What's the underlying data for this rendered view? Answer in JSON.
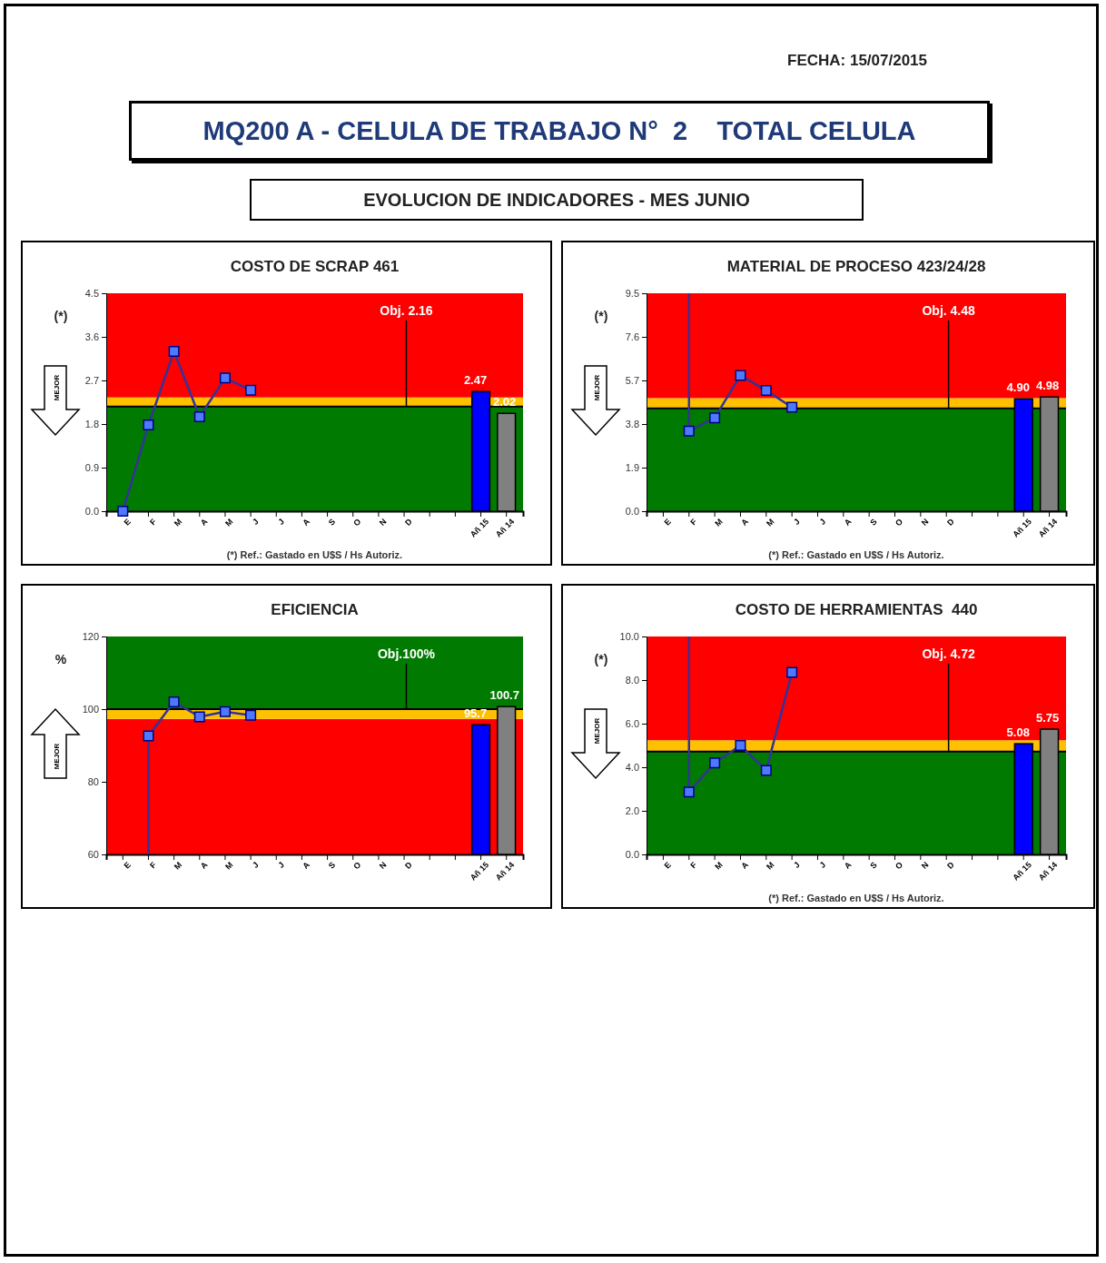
{
  "chart_data": [
    {
      "type": "other",
      "title": "MQ200 A - CELULA DE TRABAJO N°  2    TOTAL CELULA",
      "subtitle": "EVOLUCION DE INDICADORES - MES JUNIO",
      "annotations": [
        "FECHA: 15/07/2015"
      ]
    },
    {
      "type": "line",
      "title": "COSTO DE SCRAP 461",
      "ylabel": "(*)",
      "categories": [
        "E",
        "F",
        "M",
        "A",
        "M",
        "J",
        "J",
        "A",
        "S",
        "O",
        "N",
        "D",
        null,
        null,
        "Añ 15",
        "Añ 14"
      ],
      "ylim": [
        0,
        4.5
      ],
      "yticks": [
        {
          "value": 0,
          "label": "0.0"
        },
        0.9,
        1.8,
        2.7,
        3.6,
        4.5
      ],
      "grid": false,
      "marker": "square",
      "line_style": "solid",
      "bands": [
        {
          "axis": "y",
          "from": 0,
          "to": 2.16,
          "color": "#007a00"
        },
        {
          "axis": "y",
          "from": 2.16,
          "to": 2.35,
          "color": "#ffc000"
        },
        {
          "axis": "y",
          "from": 2.35,
          "to": 4.5,
          "color": "#ff0000"
        }
      ],
      "ref_lines": [
        {
          "axis": "y",
          "value": 2.16,
          "label": "Obj. 2.16",
          "color": "#000000"
        }
      ],
      "series": [
        {
          "type": "line",
          "color": "#333399",
          "values": [
            0,
            1.78,
            3.3,
            1.95,
            2.75,
            2.5,
            null,
            null,
            null,
            null,
            null,
            null,
            null,
            null,
            null,
            null
          ]
        },
        {
          "type": "bar",
          "colors": [
            "#0000ff",
            "#0000ff",
            "#0000ff",
            "#0000ff",
            "#0000ff",
            "#0000ff",
            "#0000ff",
            "#0000ff",
            "#0000ff",
            "#0000ff",
            "#0000ff",
            "#0000ff",
            "#0000ff",
            "#0000ff",
            "#0000ff",
            "#808080"
          ],
          "values": [
            null,
            null,
            null,
            null,
            null,
            null,
            null,
            null,
            null,
            null,
            null,
            null,
            null,
            null,
            2.47,
            2.02
          ],
          "value_labels": [
            null,
            null,
            null,
            null,
            null,
            null,
            null,
            null,
            null,
            null,
            null,
            null,
            null,
            null,
            "2.47",
            "2.02"
          ]
        }
      ],
      "annotations": [
        "MEJOR",
        "(*) Ref.: Gastado en U$S / Hs Autoriz."
      ]
    },
    {
      "type": "line",
      "title": "MATERIAL DE PROCESO 423/24/28",
      "ylabel": "(*)",
      "categories": [
        "E",
        "F",
        "M",
        "A",
        "M",
        "J",
        "J",
        "A",
        "S",
        "O",
        "N",
        "D",
        null,
        null,
        "Añ 15",
        "Añ 14"
      ],
      "ylim": [
        0,
        9.5
      ],
      "yticks": [
        {
          "value": 0,
          "label": "0.0"
        },
        1.9,
        3.8,
        5.7,
        7.6,
        9.5
      ],
      "grid": false,
      "marker": "square",
      "line_style": "solid",
      "bands": [
        {
          "axis": "y",
          "from": 0,
          "to": 4.48,
          "color": "#007a00"
        },
        {
          "axis": "y",
          "from": 4.48,
          "to": 4.93,
          "color": "#ffc000"
        },
        {
          "axis": "y",
          "from": 4.93,
          "to": 9.5,
          "color": "#ff0000"
        }
      ],
      "ref_lines": [
        {
          "axis": "y",
          "value": 4.48,
          "label": "Obj. 4.48",
          "color": "#000000"
        }
      ],
      "series": [
        {
          "type": "line",
          "color": "#333399",
          "values": [
            null,
            3.49,
            4.07,
            5.92,
            5.26,
            4.53,
            null,
            null,
            null,
            null,
            null,
            null,
            null,
            null,
            null,
            null
          ],
          "errors": [
            null,
            [
              3.49,
              9.5
            ],
            null,
            null,
            null,
            null,
            null,
            null,
            null,
            null,
            null,
            null,
            null,
            null,
            null,
            null
          ]
        },
        {
          "type": "bar",
          "colors": [
            "#0000ff",
            "#0000ff",
            "#0000ff",
            "#0000ff",
            "#0000ff",
            "#0000ff",
            "#0000ff",
            "#0000ff",
            "#0000ff",
            "#0000ff",
            "#0000ff",
            "#0000ff",
            "#0000ff",
            "#0000ff",
            "#0000ff",
            "#808080"
          ],
          "values": [
            null,
            null,
            null,
            null,
            null,
            null,
            null,
            null,
            null,
            null,
            null,
            null,
            null,
            null,
            4.9,
            4.98
          ],
          "value_labels": [
            null,
            null,
            null,
            null,
            null,
            null,
            null,
            null,
            null,
            null,
            null,
            null,
            null,
            null,
            "4.90",
            "4.98"
          ]
        }
      ],
      "annotations": [
        "MEJOR",
        "(*) Ref.: Gastado en U$S / Hs Autoriz."
      ]
    },
    {
      "type": "line",
      "title": "EFICIENCIA",
      "ylabel": "%",
      "categories": [
        "E",
        "F",
        "M",
        "A",
        "M",
        "J",
        "J",
        "A",
        "S",
        "O",
        "N",
        "D",
        null,
        null,
        "Añ 15",
        "Añ 14"
      ],
      "ylim": [
        60,
        120
      ],
      "yticks": [
        60,
        80,
        100,
        120
      ],
      "grid": false,
      "marker": "square",
      "line_style": "solid",
      "bands": [
        {
          "axis": "y",
          "from": 60,
          "to": 97.3,
          "color": "#ff0000"
        },
        {
          "axis": "y",
          "from": 97.3,
          "to": 100,
          "color": "#ffc000"
        },
        {
          "axis": "y",
          "from": 100,
          "to": 120,
          "color": "#007a00"
        }
      ],
      "ref_lines": [
        {
          "axis": "y",
          "value": 100,
          "label": "Obj.100%",
          "color": "#000000"
        }
      ],
      "series": [
        {
          "type": "line",
          "color": "#333399",
          "values": [
            null,
            92.6,
            102,
            97.9,
            99.3,
            98.3,
            null,
            null,
            null,
            null,
            null,
            null,
            null,
            null,
            null,
            null
          ],
          "errors": [
            null,
            [
              60,
              92.6
            ],
            null,
            null,
            null,
            null,
            null,
            null,
            null,
            null,
            null,
            null,
            null,
            null,
            null,
            null
          ]
        },
        {
          "type": "bar",
          "colors": [
            "#0000ff",
            "#0000ff",
            "#0000ff",
            "#0000ff",
            "#0000ff",
            "#0000ff",
            "#0000ff",
            "#0000ff",
            "#0000ff",
            "#0000ff",
            "#0000ff",
            "#0000ff",
            "#0000ff",
            "#0000ff",
            "#0000ff",
            "#808080"
          ],
          "values": [
            null,
            null,
            null,
            null,
            null,
            null,
            null,
            null,
            null,
            null,
            null,
            null,
            null,
            null,
            95.7,
            100.7
          ],
          "value_labels": [
            null,
            null,
            null,
            null,
            null,
            null,
            null,
            null,
            null,
            null,
            null,
            null,
            null,
            null,
            "95.7",
            "100.7"
          ]
        }
      ],
      "annotations": [
        "MEJOR"
      ]
    },
    {
      "type": "line",
      "title": "COSTO DE HERRAMIENTAS  440",
      "ylabel": "(*)",
      "categories": [
        "E",
        "F",
        "M",
        "A",
        "M",
        "J",
        "J",
        "A",
        "S",
        "O",
        "N",
        "D",
        null,
        null,
        "Añ 15",
        "Añ 14"
      ],
      "ylim": [
        0,
        10
      ],
      "yticks": [
        {
          "value": 0,
          "label": "0.0"
        },
        {
          "value": 2,
          "label": "2.0"
        },
        {
          "value": 4,
          "label": "4.0"
        },
        {
          "value": 6,
          "label": "6.0"
        },
        {
          "value": 8,
          "label": "8.0"
        },
        {
          "value": 10,
          "label": "10.0"
        }
      ],
      "grid": false,
      "marker": "square",
      "line_style": "solid",
      "bands": [
        {
          "axis": "y",
          "from": 0,
          "to": 4.72,
          "color": "#007a00"
        },
        {
          "axis": "y",
          "from": 4.72,
          "to": 5.24,
          "color": "#ffc000"
        },
        {
          "axis": "y",
          "from": 5.24,
          "to": 10,
          "color": "#ff0000"
        }
      ],
      "ref_lines": [
        {
          "axis": "y",
          "value": 4.72,
          "label": "Obj. 4.72",
          "color": "#000000"
        }
      ],
      "series": [
        {
          "type": "line",
          "color": "#333399",
          "values": [
            null,
            2.86,
            4.2,
            5.0,
            3.85,
            8.35,
            null,
            null,
            null,
            null,
            null,
            null,
            null,
            null,
            null,
            null
          ],
          "errors": [
            null,
            [
              2.86,
              10
            ],
            null,
            null,
            null,
            null,
            null,
            null,
            null,
            null,
            null,
            null,
            null,
            null,
            null,
            null
          ]
        },
        {
          "type": "bar",
          "colors": [
            "#0000ff",
            "#0000ff",
            "#0000ff",
            "#0000ff",
            "#0000ff",
            "#0000ff",
            "#0000ff",
            "#0000ff",
            "#0000ff",
            "#0000ff",
            "#0000ff",
            "#0000ff",
            "#0000ff",
            "#0000ff",
            "#0000ff",
            "#808080"
          ],
          "values": [
            null,
            null,
            null,
            null,
            null,
            null,
            null,
            null,
            null,
            null,
            null,
            null,
            null,
            null,
            5.08,
            5.75
          ],
          "value_labels": [
            null,
            null,
            null,
            null,
            null,
            null,
            null,
            null,
            null,
            null,
            null,
            null,
            null,
            null,
            "5.08",
            "5.75"
          ]
        }
      ],
      "annotations": [
        "MEJOR",
        "(*) Ref.: Gastado en U$S / Hs Autoriz."
      ]
    }
  ]
}
